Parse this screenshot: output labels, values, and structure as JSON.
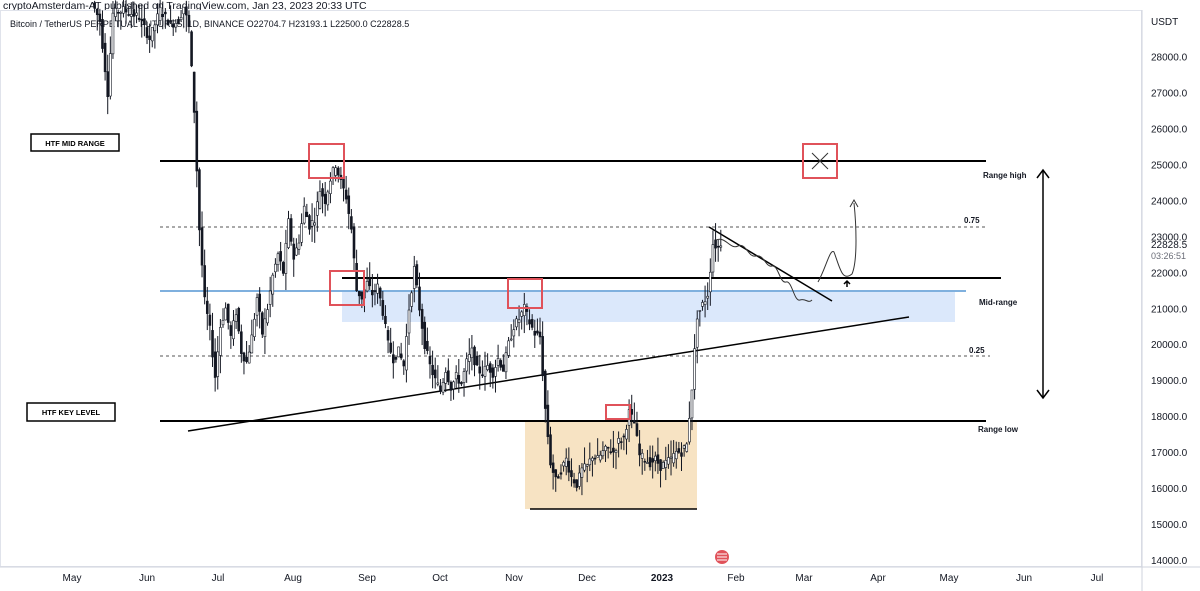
{
  "header": {
    "published": "cryptoAmsterdam-AT published on TradingView.com, Jan 23, 2023 20:33 UTC",
    "symbol_line": "Bitcoin / TetherUS PERPETUAL FUTURES, 1D, BINANCE  O22704.7  H23193.1  L22500.0  C22828.5"
  },
  "chart_data": {
    "type": "candlestick",
    "title": "Bitcoin / TetherUS PERPETUAL FUTURES, 1D, BINANCE",
    "ohlc": {
      "open": 22704.7,
      "high": 23193.1,
      "low": 22500.0,
      "close": 22828.5
    },
    "currency": "USDT",
    "x_ticks": [
      "May",
      "Jun",
      "Jul",
      "Aug",
      "Sep",
      "Oct",
      "Nov",
      "Dec",
      "2023",
      "Feb",
      "Mar",
      "Apr",
      "May",
      "Jun",
      "Jul"
    ],
    "y_ticks": [
      14000,
      15000,
      16000,
      17000,
      18000,
      19000,
      20000,
      21000,
      22000,
      23000,
      24000,
      25000,
      26000,
      27000,
      28000
    ],
    "ylim": [
      13800,
      29300
    ],
    "last_price": "22828.5",
    "countdown": "03:26:51",
    "levels": [
      {
        "name": "Range high",
        "value": 25200
      },
      {
        "name": "0.75",
        "value": 23350
      },
      {
        "name": "Mid-range",
        "value": 21550
      },
      {
        "name": "0.25",
        "value": 19750
      },
      {
        "name": "Range low",
        "value": 17950
      }
    ],
    "labels": {
      "htf_mid_range": "HTF MID RANGE",
      "htf_key_level": "HTF KEY LEVEL",
      "range_high": "Range high",
      "range_low": "Range low",
      "mid_range": "Mid-range",
      "fib_75": "0.75",
      "fib_25": "0.25"
    },
    "colors": {
      "candle": "#131722",
      "range_line": "#000000",
      "mid_line": "#7fb0de",
      "mid_zone": "#dbe8fb",
      "accum_zone": "#f7e3c3",
      "marker": "#e0525a"
    },
    "series_path": [
      [
        0,
        29500
      ],
      [
        3,
        29000
      ],
      [
        6,
        27000
      ],
      [
        8,
        29200
      ],
      [
        12,
        29300
      ],
      [
        18,
        29100
      ],
      [
        22,
        28500
      ],
      [
        26,
        29300
      ],
      [
        30,
        28900
      ],
      [
        33,
        29000
      ],
      [
        35,
        29400
      ],
      [
        37,
        28800
      ],
      [
        39,
        26500
      ],
      [
        41,
        23200
      ],
      [
        43,
        21200
      ],
      [
        45,
        20400
      ],
      [
        47,
        19100
      ],
      [
        49,
        20500
      ],
      [
        51,
        21000
      ],
      [
        53,
        20200
      ],
      [
        55,
        20900
      ],
      [
        57,
        19800
      ],
      [
        59,
        19500
      ],
      [
        61,
        20200
      ],
      [
        63,
        21300
      ],
      [
        65,
        20300
      ],
      [
        67,
        21000
      ],
      [
        69,
        21900
      ],
      [
        71,
        22500
      ],
      [
        73,
        22000
      ],
      [
        75,
        23400
      ],
      [
        77,
        22400
      ],
      [
        79,
        22900
      ],
      [
        81,
        23800
      ],
      [
        83,
        23300
      ],
      [
        85,
        23500
      ],
      [
        87,
        24300
      ],
      [
        89,
        24000
      ],
      [
        91,
        24600
      ],
      [
        93,
        25000
      ],
      [
        95,
        24500
      ],
      [
        97,
        24100
      ],
      [
        99,
        23200
      ],
      [
        101,
        21500
      ],
      [
        103,
        21300
      ],
      [
        105,
        21700
      ],
      [
        107,
        21400
      ],
      [
        109,
        21600
      ],
      [
        111,
        20900
      ],
      [
        113,
        20000
      ],
      [
        115,
        19600
      ],
      [
        117,
        19800
      ],
      [
        119,
        19400
      ],
      [
        121,
        21000
      ],
      [
        123,
        22100
      ],
      [
        125,
        21000
      ],
      [
        127,
        20000
      ],
      [
        129,
        19400
      ],
      [
        131,
        19000
      ],
      [
        133,
        18700
      ],
      [
        135,
        19300
      ],
      [
        137,
        18800
      ],
      [
        139,
        19100
      ],
      [
        141,
        18900
      ],
      [
        143,
        19500
      ],
      [
        145,
        19800
      ],
      [
        147,
        19300
      ],
      [
        149,
        19200
      ],
      [
        151,
        19400
      ],
      [
        153,
        19200
      ],
      [
        155,
        19600
      ],
      [
        157,
        19300
      ],
      [
        159,
        20000
      ],
      [
        161,
        20500
      ],
      [
        163,
        20700
      ],
      [
        165,
        21000
      ],
      [
        167,
        20600
      ],
      [
        169,
        20300
      ],
      [
        171,
        20200
      ],
      [
        173,
        18200
      ],
      [
        175,
        16700
      ],
      [
        177,
        16200
      ],
      [
        179,
        16500
      ],
      [
        181,
        16800
      ],
      [
        183,
        16300
      ],
      [
        185,
        16100
      ],
      [
        187,
        16500
      ],
      [
        189,
        16600
      ],
      [
        191,
        16900
      ],
      [
        193,
        16800
      ],
      [
        195,
        17000
      ],
      [
        197,
        17100
      ],
      [
        199,
        17000
      ],
      [
        201,
        17300
      ],
      [
        203,
        17400
      ],
      [
        205,
        18100
      ],
      [
        207,
        17800
      ],
      [
        209,
        16900
      ],
      [
        211,
        16800
      ],
      [
        213,
        16700
      ],
      [
        215,
        16800
      ],
      [
        217,
        16600
      ],
      [
        219,
        16700
      ],
      [
        221,
        16800
      ],
      [
        223,
        17000
      ],
      [
        225,
        17000
      ],
      [
        227,
        17200
      ],
      [
        229,
        18800
      ],
      [
        231,
        20800
      ],
      [
        233,
        21100
      ],
      [
        235,
        21400
      ],
      [
        237,
        22800
      ],
      [
        239,
        22700
      ],
      [
        240,
        22828
      ]
    ]
  }
}
